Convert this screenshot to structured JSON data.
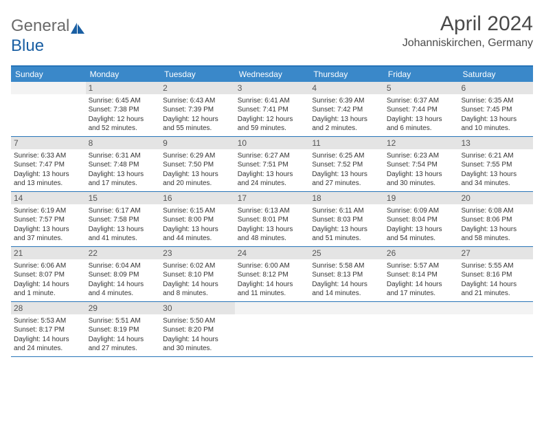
{
  "logo": {
    "text1": "General",
    "text2": "Blue"
  },
  "title": {
    "month": "April 2024",
    "location": "Johanniskirchen, Germany"
  },
  "colors": {
    "header_bg": "#3a88c9",
    "header_border": "#2673b7",
    "daynum_bg": "#e4e4e4",
    "text": "#333333",
    "title_text": "#4a4a4a"
  },
  "weekdays": [
    "Sunday",
    "Monday",
    "Tuesday",
    "Wednesday",
    "Thursday",
    "Friday",
    "Saturday"
  ],
  "weeks": [
    [
      {
        "num": "",
        "sunrise": "",
        "sunset": "",
        "daylight1": "",
        "daylight2": ""
      },
      {
        "num": "1",
        "sunrise": "Sunrise: 6:45 AM",
        "sunset": "Sunset: 7:38 PM",
        "daylight1": "Daylight: 12 hours",
        "daylight2": "and 52 minutes."
      },
      {
        "num": "2",
        "sunrise": "Sunrise: 6:43 AM",
        "sunset": "Sunset: 7:39 PM",
        "daylight1": "Daylight: 12 hours",
        "daylight2": "and 55 minutes."
      },
      {
        "num": "3",
        "sunrise": "Sunrise: 6:41 AM",
        "sunset": "Sunset: 7:41 PM",
        "daylight1": "Daylight: 12 hours",
        "daylight2": "and 59 minutes."
      },
      {
        "num": "4",
        "sunrise": "Sunrise: 6:39 AM",
        "sunset": "Sunset: 7:42 PM",
        "daylight1": "Daylight: 13 hours",
        "daylight2": "and 2 minutes."
      },
      {
        "num": "5",
        "sunrise": "Sunrise: 6:37 AM",
        "sunset": "Sunset: 7:44 PM",
        "daylight1": "Daylight: 13 hours",
        "daylight2": "and 6 minutes."
      },
      {
        "num": "6",
        "sunrise": "Sunrise: 6:35 AM",
        "sunset": "Sunset: 7:45 PM",
        "daylight1": "Daylight: 13 hours",
        "daylight2": "and 10 minutes."
      }
    ],
    [
      {
        "num": "7",
        "sunrise": "Sunrise: 6:33 AM",
        "sunset": "Sunset: 7:47 PM",
        "daylight1": "Daylight: 13 hours",
        "daylight2": "and 13 minutes."
      },
      {
        "num": "8",
        "sunrise": "Sunrise: 6:31 AM",
        "sunset": "Sunset: 7:48 PM",
        "daylight1": "Daylight: 13 hours",
        "daylight2": "and 17 minutes."
      },
      {
        "num": "9",
        "sunrise": "Sunrise: 6:29 AM",
        "sunset": "Sunset: 7:50 PM",
        "daylight1": "Daylight: 13 hours",
        "daylight2": "and 20 minutes."
      },
      {
        "num": "10",
        "sunrise": "Sunrise: 6:27 AM",
        "sunset": "Sunset: 7:51 PM",
        "daylight1": "Daylight: 13 hours",
        "daylight2": "and 24 minutes."
      },
      {
        "num": "11",
        "sunrise": "Sunrise: 6:25 AM",
        "sunset": "Sunset: 7:52 PM",
        "daylight1": "Daylight: 13 hours",
        "daylight2": "and 27 minutes."
      },
      {
        "num": "12",
        "sunrise": "Sunrise: 6:23 AM",
        "sunset": "Sunset: 7:54 PM",
        "daylight1": "Daylight: 13 hours",
        "daylight2": "and 30 minutes."
      },
      {
        "num": "13",
        "sunrise": "Sunrise: 6:21 AM",
        "sunset": "Sunset: 7:55 PM",
        "daylight1": "Daylight: 13 hours",
        "daylight2": "and 34 minutes."
      }
    ],
    [
      {
        "num": "14",
        "sunrise": "Sunrise: 6:19 AM",
        "sunset": "Sunset: 7:57 PM",
        "daylight1": "Daylight: 13 hours",
        "daylight2": "and 37 minutes."
      },
      {
        "num": "15",
        "sunrise": "Sunrise: 6:17 AM",
        "sunset": "Sunset: 7:58 PM",
        "daylight1": "Daylight: 13 hours",
        "daylight2": "and 41 minutes."
      },
      {
        "num": "16",
        "sunrise": "Sunrise: 6:15 AM",
        "sunset": "Sunset: 8:00 PM",
        "daylight1": "Daylight: 13 hours",
        "daylight2": "and 44 minutes."
      },
      {
        "num": "17",
        "sunrise": "Sunrise: 6:13 AM",
        "sunset": "Sunset: 8:01 PM",
        "daylight1": "Daylight: 13 hours",
        "daylight2": "and 48 minutes."
      },
      {
        "num": "18",
        "sunrise": "Sunrise: 6:11 AM",
        "sunset": "Sunset: 8:03 PM",
        "daylight1": "Daylight: 13 hours",
        "daylight2": "and 51 minutes."
      },
      {
        "num": "19",
        "sunrise": "Sunrise: 6:09 AM",
        "sunset": "Sunset: 8:04 PM",
        "daylight1": "Daylight: 13 hours",
        "daylight2": "and 54 minutes."
      },
      {
        "num": "20",
        "sunrise": "Sunrise: 6:08 AM",
        "sunset": "Sunset: 8:06 PM",
        "daylight1": "Daylight: 13 hours",
        "daylight2": "and 58 minutes."
      }
    ],
    [
      {
        "num": "21",
        "sunrise": "Sunrise: 6:06 AM",
        "sunset": "Sunset: 8:07 PM",
        "daylight1": "Daylight: 14 hours",
        "daylight2": "and 1 minute."
      },
      {
        "num": "22",
        "sunrise": "Sunrise: 6:04 AM",
        "sunset": "Sunset: 8:09 PM",
        "daylight1": "Daylight: 14 hours",
        "daylight2": "and 4 minutes."
      },
      {
        "num": "23",
        "sunrise": "Sunrise: 6:02 AM",
        "sunset": "Sunset: 8:10 PM",
        "daylight1": "Daylight: 14 hours",
        "daylight2": "and 8 minutes."
      },
      {
        "num": "24",
        "sunrise": "Sunrise: 6:00 AM",
        "sunset": "Sunset: 8:12 PM",
        "daylight1": "Daylight: 14 hours",
        "daylight2": "and 11 minutes."
      },
      {
        "num": "25",
        "sunrise": "Sunrise: 5:58 AM",
        "sunset": "Sunset: 8:13 PM",
        "daylight1": "Daylight: 14 hours",
        "daylight2": "and 14 minutes."
      },
      {
        "num": "26",
        "sunrise": "Sunrise: 5:57 AM",
        "sunset": "Sunset: 8:14 PM",
        "daylight1": "Daylight: 14 hours",
        "daylight2": "and 17 minutes."
      },
      {
        "num": "27",
        "sunrise": "Sunrise: 5:55 AM",
        "sunset": "Sunset: 8:16 PM",
        "daylight1": "Daylight: 14 hours",
        "daylight2": "and 21 minutes."
      }
    ],
    [
      {
        "num": "28",
        "sunrise": "Sunrise: 5:53 AM",
        "sunset": "Sunset: 8:17 PM",
        "daylight1": "Daylight: 14 hours",
        "daylight2": "and 24 minutes."
      },
      {
        "num": "29",
        "sunrise": "Sunrise: 5:51 AM",
        "sunset": "Sunset: 8:19 PM",
        "daylight1": "Daylight: 14 hours",
        "daylight2": "and 27 minutes."
      },
      {
        "num": "30",
        "sunrise": "Sunrise: 5:50 AM",
        "sunset": "Sunset: 8:20 PM",
        "daylight1": "Daylight: 14 hours",
        "daylight2": "and 30 minutes."
      },
      {
        "num": "",
        "sunrise": "",
        "sunset": "",
        "daylight1": "",
        "daylight2": ""
      },
      {
        "num": "",
        "sunrise": "",
        "sunset": "",
        "daylight1": "",
        "daylight2": ""
      },
      {
        "num": "",
        "sunrise": "",
        "sunset": "",
        "daylight1": "",
        "daylight2": ""
      },
      {
        "num": "",
        "sunrise": "",
        "sunset": "",
        "daylight1": "",
        "daylight2": ""
      }
    ]
  ]
}
